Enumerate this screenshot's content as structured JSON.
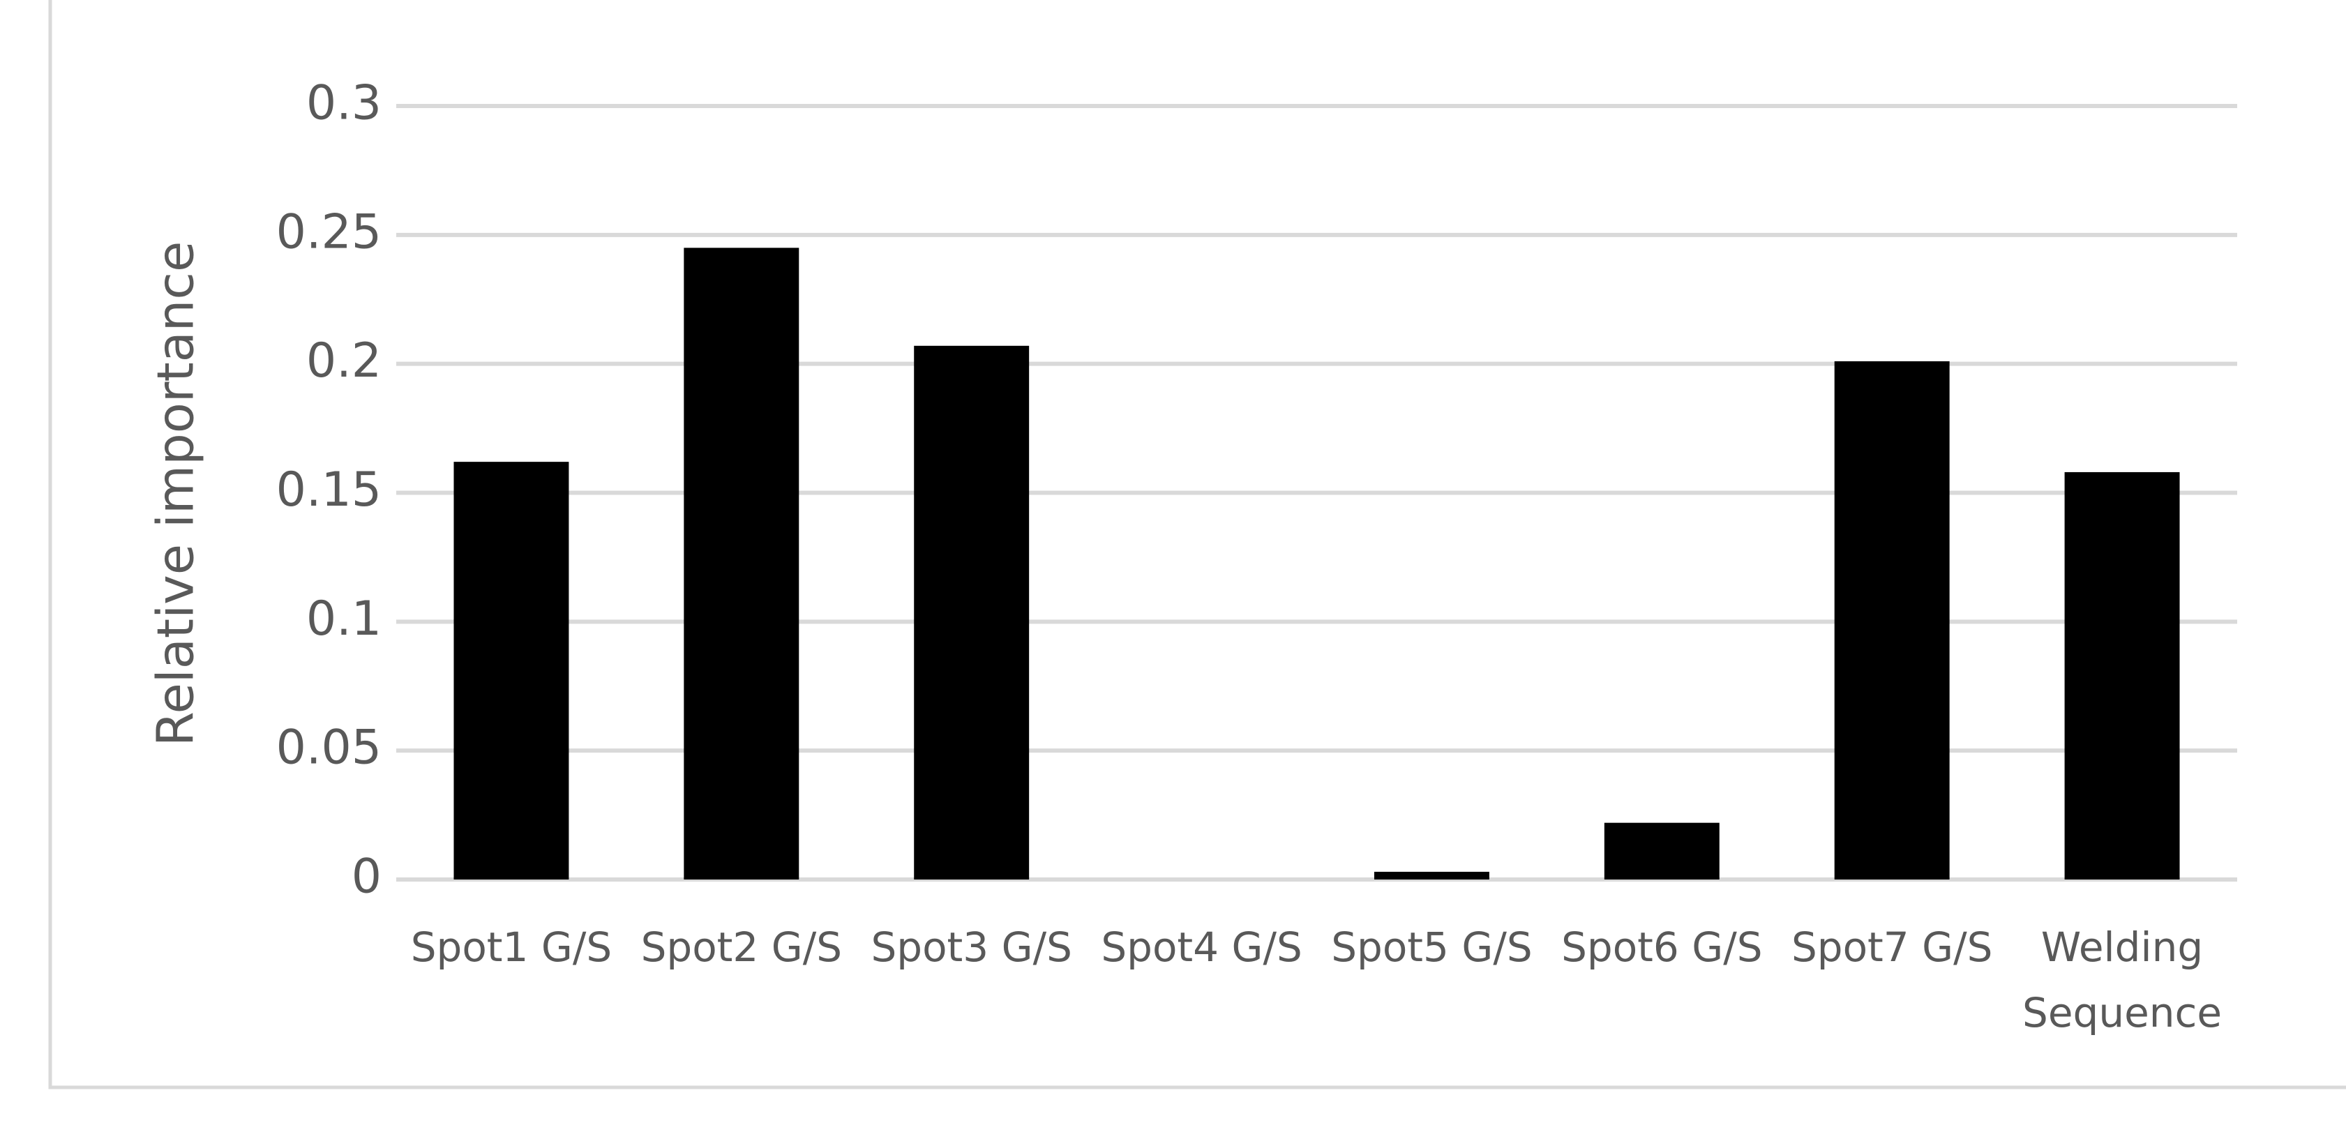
{
  "chart_data": {
    "type": "bar",
    "y_label": "Relative importance",
    "categories": [
      "Spot1 G/S",
      "Spot2 G/S",
      "Spot3 G/S",
      "Spot4 G/S",
      "Spot5 G/S",
      "Spot6 G/S",
      "Spot7 G/S",
      "Welding Sequence"
    ],
    "values": [
      0.162,
      0.245,
      0.207,
      0,
      0.003,
      0.022,
      0.201,
      0.158
    ],
    "color": "#000000",
    "ylim": [
      0,
      0.3
    ],
    "yticks": [
      0,
      0.05,
      0.1,
      0.15,
      0.2,
      0.25,
      0.3
    ],
    "grid": true
  }
}
